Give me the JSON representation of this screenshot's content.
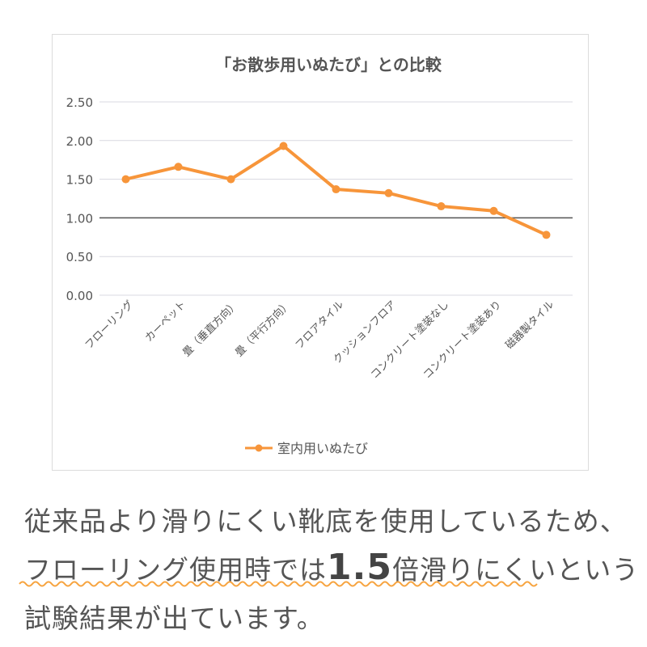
{
  "chart_data": {
    "type": "line",
    "title": "「お散歩用いぬたび」との比較",
    "categories": [
      "フローリング",
      "カーペット",
      "畳（垂直方向）",
      "畳（平行方向）",
      "フロアタイル",
      "クッションフロア",
      "コンクリート塗装なし",
      "コンクリート塗装あり",
      "磁器製タイル"
    ],
    "series": [
      {
        "name": "室内用いぬたび",
        "values": [
          1.5,
          1.66,
          1.5,
          1.93,
          1.37,
          1.32,
          1.15,
          1.09,
          0.78
        ],
        "color": "#f7953a"
      }
    ],
    "yticks": [
      "0.00",
      "0.50",
      "1.00",
      "1.50",
      "2.00",
      "2.50"
    ],
    "ylim": [
      0,
      2.5
    ],
    "reference_line": 1.0,
    "grid": true,
    "legend_position": "bottom"
  },
  "caption": {
    "line1": "従来品より滑りにくい靴底を使用しているため、",
    "line2_pre": "フローリング使用時では",
    "line2_emph": "1.5",
    "line2_post": "倍滑りにくいという",
    "line3": "試験結果が出ています。"
  },
  "colors": {
    "accent": "#f7953a",
    "text": "#555555"
  }
}
